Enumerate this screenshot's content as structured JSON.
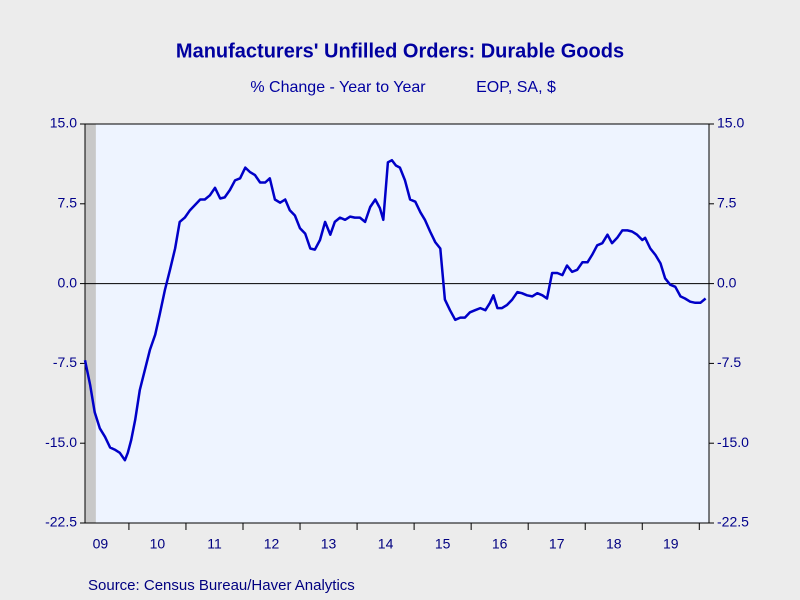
{
  "chart_data": {
    "type": "line",
    "title": "Manufacturers' Unfilled Orders: Durable Goods",
    "subtitle": "% Change - Year to Year",
    "subtitle_right": "EOP, SA, $",
    "source": "Source:  Census Bureau/Haver Analytics",
    "xlim": [
      2009.23,
      2020.17
    ],
    "ylim": [
      -22.5,
      15
    ],
    "yticks": [
      {
        "value": 15,
        "label": "15.0"
      },
      {
        "value": 7.5,
        "label": "7.5"
      },
      {
        "value": 0,
        "label": "0.0"
      },
      {
        "value": -7.5,
        "label": "-7.5"
      },
      {
        "value": -15,
        "label": "-15.0"
      },
      {
        "value": -22.5,
        "label": "-22.5"
      }
    ],
    "xticks": [
      {
        "value": 2009.5,
        "label": "09"
      },
      {
        "value": 2010.5,
        "label": "10"
      },
      {
        "value": 2011.5,
        "label": "11"
      },
      {
        "value": 2012.5,
        "label": "12"
      },
      {
        "value": 2013.5,
        "label": "13"
      },
      {
        "value": 2014.5,
        "label": "14"
      },
      {
        "value": 2015.5,
        "label": "15"
      },
      {
        "value": 2016.5,
        "label": "16"
      },
      {
        "value": 2017.5,
        "label": "17"
      },
      {
        "value": 2018.5,
        "label": "18"
      },
      {
        "value": 2019.5,
        "label": "19"
      }
    ],
    "recession": [
      2009.23,
      2009.42
    ],
    "series": [
      {
        "color": "#0000c8",
        "x": [
          2009.23,
          2009.32,
          2009.4,
          2009.49,
          2009.58,
          2009.67,
          2009.75,
          2009.84,
          2009.93,
          2009.98,
          2010.04,
          2010.11,
          2010.19,
          2010.28,
          2010.37,
          2010.46,
          2010.54,
          2010.63,
          2010.72,
          2010.81,
          2010.89,
          2010.98,
          2011.07,
          2011.16,
          2011.25,
          2011.33,
          2011.42,
          2011.51,
          2011.6,
          2011.68,
          2011.77,
          2011.86,
          2011.95,
          2012.04,
          2012.12,
          2012.21,
          2012.3,
          2012.39,
          2012.47,
          2012.56,
          2012.65,
          2012.74,
          2012.82,
          2012.91,
          2013.0,
          2013.09,
          2013.18,
          2013.26,
          2013.35,
          2013.44,
          2013.53,
          2013.61,
          2013.7,
          2013.79,
          2013.88,
          2013.96,
          2014.05,
          2014.14,
          2014.23,
          2014.32,
          2014.4,
          2014.46,
          2014.54,
          2014.61,
          2014.68,
          2014.75,
          2014.84,
          2014.93,
          2015.02,
          2015.11,
          2015.19,
          2015.28,
          2015.37,
          2015.46,
          2015.54,
          2015.63,
          2015.72,
          2015.81,
          2015.89,
          2015.98,
          2016.07,
          2016.16,
          2016.25,
          2016.33,
          2016.39,
          2016.46,
          2016.54,
          2016.63,
          2016.72,
          2016.81,
          2016.89,
          2016.98,
          2017.07,
          2017.16,
          2017.25,
          2017.33,
          2017.42,
          2017.51,
          2017.6,
          2017.68,
          2017.77,
          2017.86,
          2017.95,
          2018.04,
          2018.12,
          2018.21,
          2018.3,
          2018.39,
          2018.47,
          2018.56,
          2018.65,
          2018.74,
          2018.82,
          2018.91,
          2019.0,
          2019.05,
          2019.14,
          2019.23,
          2019.32,
          2019.4,
          2019.49,
          2019.58,
          2019.67,
          2019.75,
          2019.84,
          2019.93,
          2020.02,
          2020.11
        ],
        "values": [
          -7.2,
          -9.5,
          -12.1,
          -13.6,
          -14.4,
          -15.4,
          -15.6,
          -15.9,
          -16.6,
          -15.9,
          -14.7,
          -12.8,
          -10,
          -8.1,
          -6.2,
          -4.8,
          -2.9,
          -0.6,
          1.3,
          3.3,
          5.8,
          6.2,
          6.9,
          7.4,
          7.9,
          7.9,
          8.3,
          9,
          8,
          8.1,
          8.8,
          9.7,
          9.9,
          10.9,
          10.5,
          10.2,
          9.5,
          9.5,
          9.9,
          7.9,
          7.6,
          7.9,
          6.9,
          6.4,
          5.2,
          4.7,
          3.3,
          3.2,
          4.1,
          5.8,
          4.6,
          5.8,
          6.2,
          6,
          6.3,
          6.2,
          6.2,
          5.8,
          7.2,
          7.9,
          7.1,
          6,
          11.4,
          11.6,
          11.1,
          10.9,
          9.7,
          7.9,
          7.7,
          6.7,
          6,
          4.9,
          3.9,
          3.3,
          -1.5,
          -2.5,
          -3.4,
          -3.2,
          -3.2,
          -2.7,
          -2.5,
          -2.3,
          -2.5,
          -1.8,
          -1.1,
          -2.3,
          -2.3,
          -2,
          -1.5,
          -0.8,
          -0.9,
          -1.1,
          -1.2,
          -0.9,
          -1.1,
          -1.4,
          1,
          1,
          0.8,
          1.7,
          1.1,
          1.3,
          2,
          2,
          2.7,
          3.6,
          3.8,
          4.6,
          3.8,
          4.3,
          5,
          5,
          4.9,
          4.6,
          4.1,
          4.3,
          3.3,
          2.7,
          1.9,
          0.5,
          -0.1,
          -0.3,
          -1.2,
          -1.4,
          -1.7,
          -1.8,
          -1.8,
          -1.4
        ]
      }
    ]
  }
}
